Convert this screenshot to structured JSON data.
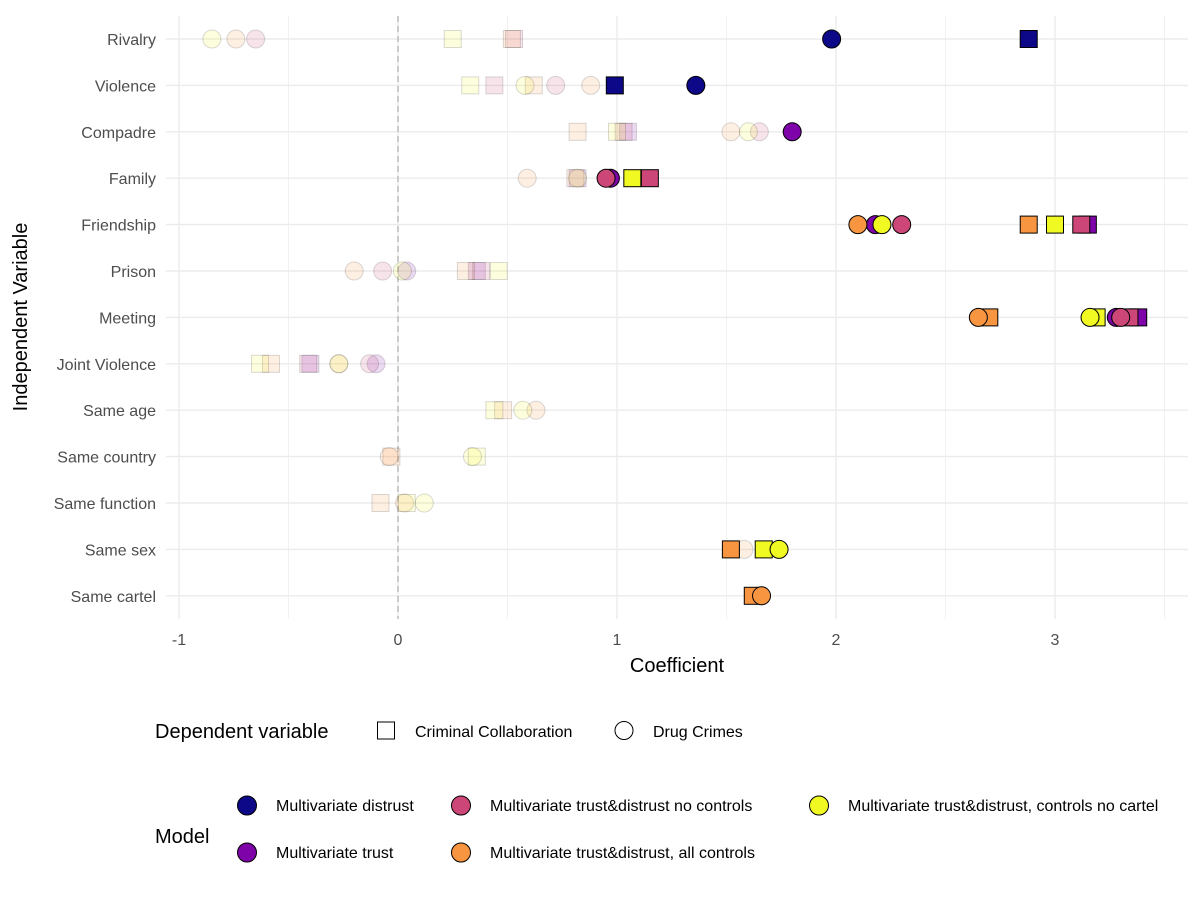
{
  "chart_data": {
    "type": "scatter",
    "title": "",
    "xlabel": "Coefficient",
    "ylabel": "Independent Variable",
    "xlim": [
      -1,
      3.5
    ],
    "x_ticks": [
      -1,
      0,
      1,
      2,
      3
    ],
    "x_tick_labels": [
      "-1",
      "0",
      "1",
      "2",
      "3"
    ],
    "reference_line_x": 0,
    "categories": [
      "Rivalry",
      "Violence",
      "Compadre",
      "Family",
      "Friendship",
      "Prison",
      "Meeting",
      "Joint Violence",
      "Same age",
      "Same country",
      "Same function",
      "Same sex",
      "Same cartel"
    ],
    "shape_legend": {
      "title": "Dependent variable",
      "items": [
        {
          "key": "CC",
          "shape": "square",
          "label": "Criminal Collaboration"
        },
        {
          "key": "DC",
          "shape": "circle",
          "label": "Drug Crimes"
        }
      ]
    },
    "model_legend": {
      "title": "Model",
      "items": [
        {
          "key": "MD",
          "label": "Multivariate distrust",
          "color": "#0D0887"
        },
        {
          "key": "MT",
          "label": "Multivariate trust",
          "color": "#7E03A8"
        },
        {
          "key": "TDN",
          "label": "Multivariate trust&distrust no controls",
          "color": "#CC4778"
        },
        {
          "key": "TDA",
          "label": "Multivariate trust&distrust, all controls",
          "color": "#F89540"
        },
        {
          "key": "TDC",
          "label": "Multivariate trust&distrust, controls no cartel",
          "color": "#F0F921"
        }
      ]
    },
    "series": [
      {
        "model": "MD",
        "dv": "CC",
        "points": [
          {
            "y": "Rivalry",
            "x": 2.88,
            "sig": true
          },
          {
            "y": "Violence",
            "x": 0.99,
            "sig": true
          }
        ]
      },
      {
        "model": "MD",
        "dv": "DC",
        "points": [
          {
            "y": "Rivalry",
            "x": 1.98,
            "sig": true
          },
          {
            "y": "Violence",
            "x": 1.36,
            "sig": true
          }
        ]
      },
      {
        "model": "MT",
        "dv": "CC",
        "points": [
          {
            "y": "Compadre",
            "x": 1.05,
            "sig": false
          },
          {
            "y": "Family",
            "x": 0.82,
            "sig": false
          },
          {
            "y": "Friendship",
            "x": 3.15,
            "sig": true
          },
          {
            "y": "Prison",
            "x": 0.36,
            "sig": false
          },
          {
            "y": "Meeting",
            "x": 3.38,
            "sig": true
          },
          {
            "y": "Joint Violence",
            "x": -0.4,
            "sig": false
          }
        ]
      },
      {
        "model": "MT",
        "dv": "DC",
        "points": [
          {
            "y": "Compadre",
            "x": 1.8,
            "sig": true
          },
          {
            "y": "Family",
            "x": 0.97,
            "sig": true
          },
          {
            "y": "Friendship",
            "x": 2.18,
            "sig": true
          },
          {
            "y": "Prison",
            "x": 0.04,
            "sig": false
          },
          {
            "y": "Meeting",
            "x": 3.28,
            "sig": true
          },
          {
            "y": "Joint Violence",
            "x": -0.1,
            "sig": false
          }
        ]
      },
      {
        "model": "TDN",
        "dv": "CC",
        "points": [
          {
            "y": "Rivalry",
            "x": 0.53,
            "sig": false
          },
          {
            "y": "Violence",
            "x": 0.44,
            "sig": false
          },
          {
            "y": "Compadre",
            "x": 1.03,
            "sig": false
          },
          {
            "y": "Family",
            "x": 1.15,
            "sig": true
          },
          {
            "y": "Friendship",
            "x": 3.12,
            "sig": true
          },
          {
            "y": "Prison",
            "x": 0.38,
            "sig": false
          },
          {
            "y": "Meeting",
            "x": 3.34,
            "sig": true
          },
          {
            "y": "Joint Violence",
            "x": -0.41,
            "sig": false
          }
        ]
      },
      {
        "model": "TDN",
        "dv": "DC",
        "points": [
          {
            "y": "Rivalry",
            "x": -0.65,
            "sig": false
          },
          {
            "y": "Violence",
            "x": 0.72,
            "sig": false
          },
          {
            "y": "Compadre",
            "x": 1.65,
            "sig": false
          },
          {
            "y": "Family",
            "x": 0.95,
            "sig": true
          },
          {
            "y": "Friendship",
            "x": 2.3,
            "sig": true
          },
          {
            "y": "Prison",
            "x": -0.07,
            "sig": false
          },
          {
            "y": "Meeting",
            "x": 3.3,
            "sig": true
          },
          {
            "y": "Joint Violence",
            "x": -0.13,
            "sig": false
          }
        ]
      },
      {
        "model": "TDA",
        "dv": "CC",
        "points": [
          {
            "y": "Rivalry",
            "x": 0.52,
            "sig": false
          },
          {
            "y": "Violence",
            "x": 0.62,
            "sig": false
          },
          {
            "y": "Compadre",
            "x": 0.82,
            "sig": false
          },
          {
            "y": "Family",
            "x": 0.81,
            "sig": false
          },
          {
            "y": "Friendship",
            "x": 2.88,
            "sig": true
          },
          {
            "y": "Prison",
            "x": 0.31,
            "sig": false
          },
          {
            "y": "Meeting",
            "x": 2.7,
            "sig": true
          },
          {
            "y": "Joint Violence",
            "x": -0.58,
            "sig": false
          },
          {
            "y": "Same age",
            "x": 0.48,
            "sig": false
          },
          {
            "y": "Same country",
            "x": -0.03,
            "sig": false
          },
          {
            "y": "Same function",
            "x": -0.08,
            "sig": false
          },
          {
            "y": "Same sex",
            "x": 1.52,
            "sig": true
          },
          {
            "y": "Same cartel",
            "x": 1.62,
            "sig": true
          }
        ]
      },
      {
        "model": "TDA",
        "dv": "DC",
        "points": [
          {
            "y": "Rivalry",
            "x": -0.74,
            "sig": false
          },
          {
            "y": "Violence",
            "x": 0.88,
            "sig": false
          },
          {
            "y": "Compadre",
            "x": 1.52,
            "sig": false
          },
          {
            "y": "Family",
            "x": 0.59,
            "sig": false
          },
          {
            "y": "Friendship",
            "x": 2.1,
            "sig": true
          },
          {
            "y": "Prison",
            "x": -0.2,
            "sig": false
          },
          {
            "y": "Meeting",
            "x": 2.65,
            "sig": true
          },
          {
            "y": "Joint Violence",
            "x": -0.27,
            "sig": false
          },
          {
            "y": "Same age",
            "x": 0.63,
            "sig": false
          },
          {
            "y": "Same country",
            "x": -0.04,
            "sig": false
          },
          {
            "y": "Same function",
            "x": 0.03,
            "sig": false
          },
          {
            "y": "Same sex",
            "x": 1.58,
            "sig": false
          },
          {
            "y": "Same cartel",
            "x": 1.66,
            "sig": true
          }
        ]
      },
      {
        "model": "TDC",
        "dv": "CC",
        "points": [
          {
            "y": "Rivalry",
            "x": 0.25,
            "sig": false
          },
          {
            "y": "Violence",
            "x": 0.33,
            "sig": false
          },
          {
            "y": "Compadre",
            "x": 1.0,
            "sig": false
          },
          {
            "y": "Family",
            "x": 1.07,
            "sig": true
          },
          {
            "y": "Friendship",
            "x": 3.0,
            "sig": true
          },
          {
            "y": "Prison",
            "x": 0.46,
            "sig": false
          },
          {
            "y": "Meeting",
            "x": 3.19,
            "sig": true
          },
          {
            "y": "Joint Violence",
            "x": -0.63,
            "sig": false
          },
          {
            "y": "Same age",
            "x": 0.44,
            "sig": false
          },
          {
            "y": "Same country",
            "x": 0.36,
            "sig": false
          },
          {
            "y": "Same function",
            "x": 0.04,
            "sig": false
          },
          {
            "y": "Same sex",
            "x": 1.67,
            "sig": true
          }
        ]
      },
      {
        "model": "TDC",
        "dv": "DC",
        "points": [
          {
            "y": "Rivalry",
            "x": -0.85,
            "sig": false
          },
          {
            "y": "Violence",
            "x": 0.58,
            "sig": false
          },
          {
            "y": "Compadre",
            "x": 1.6,
            "sig": false
          },
          {
            "y": "Family",
            "x": 0.82,
            "sig": false
          },
          {
            "y": "Friendship",
            "x": 2.21,
            "sig": true
          },
          {
            "y": "Prison",
            "x": 0.02,
            "sig": false
          },
          {
            "y": "Meeting",
            "x": 3.16,
            "sig": true
          },
          {
            "y": "Joint Violence",
            "x": -0.27,
            "sig": false
          },
          {
            "y": "Same age",
            "x": 0.57,
            "sig": false
          },
          {
            "y": "Same country",
            "x": 0.34,
            "sig": false
          },
          {
            "y": "Same function",
            "x": 0.12,
            "sig": false
          },
          {
            "y": "Same sex",
            "x": 1.74,
            "sig": true
          }
        ]
      }
    ]
  }
}
